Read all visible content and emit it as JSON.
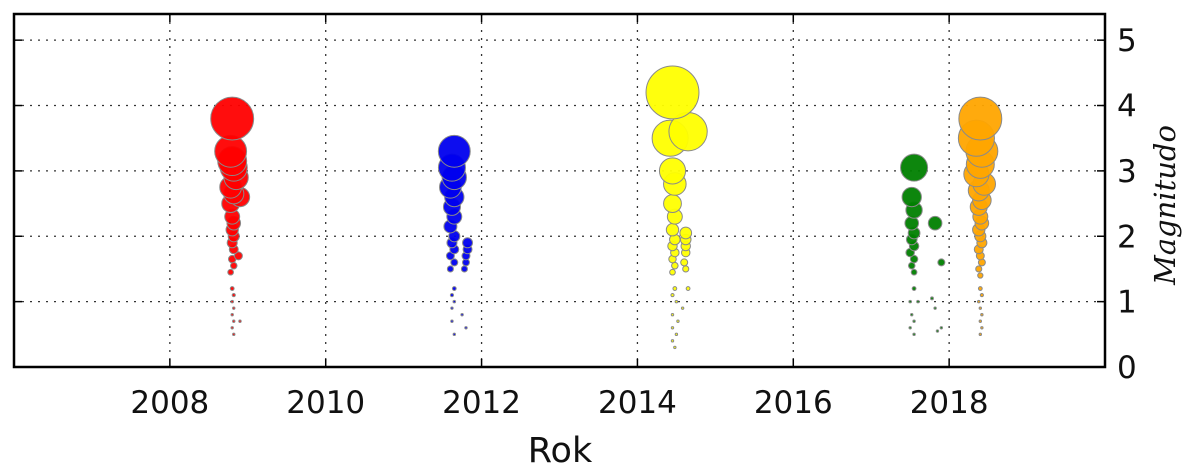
{
  "chart_data": {
    "type": "scatter",
    "title": "",
    "xlabel": "Rok",
    "ylabel": "Magnitudo",
    "xlim": [
      2006.0,
      2020.0
    ],
    "ylim": [
      0,
      5.4
    ],
    "x_ticks": [
      2008,
      2010,
      2012,
      2014,
      2016,
      2018
    ],
    "y_ticks": [
      0,
      1,
      2,
      3,
      4,
      5
    ],
    "x_tick_labels": [
      "2008",
      "2010",
      "2012",
      "2014",
      "2016",
      "2018"
    ],
    "y_tick_labels": [
      "0",
      "1",
      "2",
      "3",
      "4",
      "5"
    ],
    "y_axis_side": "right",
    "grid": true,
    "marker_size_encodes": "magnitude",
    "series": [
      {
        "color": "#ff0000",
        "points": [
          [
            2008.8,
            3.8
          ],
          [
            2008.78,
            3.3
          ],
          [
            2008.8,
            3.15
          ],
          [
            2008.82,
            3.05
          ],
          [
            2008.85,
            2.9
          ],
          [
            2008.78,
            2.75
          ],
          [
            2008.82,
            2.65
          ],
          [
            2008.9,
            2.6
          ],
          [
            2008.78,
            2.5
          ],
          [
            2008.8,
            2.3
          ],
          [
            2008.82,
            2.2
          ],
          [
            2008.8,
            2.1
          ],
          [
            2008.82,
            2.0
          ],
          [
            2008.8,
            1.9
          ],
          [
            2008.82,
            1.8
          ],
          [
            2008.88,
            1.7
          ],
          [
            2008.8,
            1.65
          ],
          [
            2008.82,
            1.55
          ],
          [
            2008.78,
            1.45
          ],
          [
            2008.8,
            1.2
          ],
          [
            2008.82,
            1.1
          ],
          [
            2008.8,
            1.0
          ],
          [
            2008.82,
            0.9
          ],
          [
            2008.8,
            0.8
          ],
          [
            2008.82,
            0.7
          ],
          [
            2008.9,
            0.7
          ],
          [
            2008.8,
            0.6
          ],
          [
            2008.82,
            0.5
          ]
        ]
      },
      {
        "color": "#0000ee",
        "points": [
          [
            2011.65,
            3.3
          ],
          [
            2011.62,
            3.05
          ],
          [
            2011.65,
            2.9
          ],
          [
            2011.6,
            2.75
          ],
          [
            2011.65,
            2.6
          ],
          [
            2011.62,
            2.45
          ],
          [
            2011.65,
            2.3
          ],
          [
            2011.6,
            2.15
          ],
          [
            2011.65,
            2.0
          ],
          [
            2011.62,
            1.9
          ],
          [
            2011.82,
            1.9
          ],
          [
            2011.65,
            1.8
          ],
          [
            2011.82,
            1.8
          ],
          [
            2011.6,
            1.7
          ],
          [
            2011.8,
            1.7
          ],
          [
            2011.65,
            1.6
          ],
          [
            2011.8,
            1.6
          ],
          [
            2011.6,
            1.5
          ],
          [
            2011.78,
            1.5
          ],
          [
            2011.65,
            1.2
          ],
          [
            2011.62,
            1.1
          ],
          [
            2011.65,
            1.0
          ],
          [
            2011.62,
            0.9
          ],
          [
            2011.75,
            0.8
          ],
          [
            2011.62,
            0.7
          ],
          [
            2011.8,
            0.6
          ],
          [
            2011.65,
            0.5
          ]
        ]
      },
      {
        "color": "#ffff00",
        "points": [
          [
            2014.45,
            4.2
          ],
          [
            2014.42,
            3.5
          ],
          [
            2014.65,
            3.6
          ],
          [
            2014.45,
            3.0
          ],
          [
            2014.48,
            2.8
          ],
          [
            2014.45,
            2.5
          ],
          [
            2014.48,
            2.3
          ],
          [
            2014.45,
            2.1
          ],
          [
            2014.62,
            2.05
          ],
          [
            2014.48,
            1.95
          ],
          [
            2014.62,
            1.95
          ],
          [
            2014.45,
            1.85
          ],
          [
            2014.62,
            1.85
          ],
          [
            2014.48,
            1.75
          ],
          [
            2014.62,
            1.75
          ],
          [
            2014.45,
            1.65
          ],
          [
            2014.6,
            1.6
          ],
          [
            2014.48,
            1.55
          ],
          [
            2014.62,
            1.5
          ],
          [
            2014.45,
            1.45
          ],
          [
            2014.48,
            1.2
          ],
          [
            2014.65,
            1.2
          ],
          [
            2014.45,
            1.1
          ],
          [
            2014.5,
            1.0
          ],
          [
            2014.58,
            0.9
          ],
          [
            2014.45,
            0.8
          ],
          [
            2014.52,
            0.7
          ],
          [
            2014.45,
            0.6
          ],
          [
            2014.5,
            0.5
          ],
          [
            2014.45,
            0.4
          ],
          [
            2014.48,
            0.3
          ]
        ]
      },
      {
        "color": "#008000",
        "points": [
          [
            2017.55,
            3.05
          ],
          [
            2017.52,
            2.6
          ],
          [
            2017.55,
            2.4
          ],
          [
            2017.82,
            2.2
          ],
          [
            2017.52,
            2.2
          ],
          [
            2017.55,
            2.05
          ],
          [
            2017.52,
            1.95
          ],
          [
            2017.55,
            1.85
          ],
          [
            2017.5,
            1.75
          ],
          [
            2017.55,
            1.65
          ],
          [
            2017.9,
            1.6
          ],
          [
            2017.52,
            1.55
          ],
          [
            2017.55,
            1.45
          ],
          [
            2017.55,
            1.2
          ],
          [
            2017.5,
            1.0
          ],
          [
            2017.78,
            1.05
          ],
          [
            2017.6,
            1.0
          ],
          [
            2017.82,
            0.9
          ],
          [
            2017.52,
            0.8
          ],
          [
            2017.55,
            0.7
          ],
          [
            2017.5,
            0.6
          ],
          [
            2017.55,
            0.5
          ],
          [
            2017.85,
            0.55
          ],
          [
            2017.9,
            0.6
          ]
        ]
      },
      {
        "color": "#ffa500",
        "points": [
          [
            2018.4,
            3.8
          ],
          [
            2018.35,
            3.5
          ],
          [
            2018.42,
            3.3
          ],
          [
            2018.4,
            3.1
          ],
          [
            2018.35,
            2.95
          ],
          [
            2018.45,
            2.8
          ],
          [
            2018.38,
            2.7
          ],
          [
            2018.42,
            2.55
          ],
          [
            2018.38,
            2.45
          ],
          [
            2018.4,
            2.3
          ],
          [
            2018.42,
            2.2
          ],
          [
            2018.38,
            2.1
          ],
          [
            2018.4,
            2.0
          ],
          [
            2018.42,
            1.9
          ],
          [
            2018.38,
            1.8
          ],
          [
            2018.4,
            1.7
          ],
          [
            2018.42,
            1.6
          ],
          [
            2018.38,
            1.5
          ],
          [
            2018.4,
            1.4
          ],
          [
            2018.4,
            1.2
          ],
          [
            2018.42,
            1.1
          ],
          [
            2018.38,
            1.0
          ],
          [
            2018.4,
            0.9
          ],
          [
            2018.42,
            0.8
          ],
          [
            2018.4,
            0.7
          ],
          [
            2018.42,
            0.6
          ],
          [
            2018.4,
            0.5
          ]
        ]
      }
    ]
  }
}
